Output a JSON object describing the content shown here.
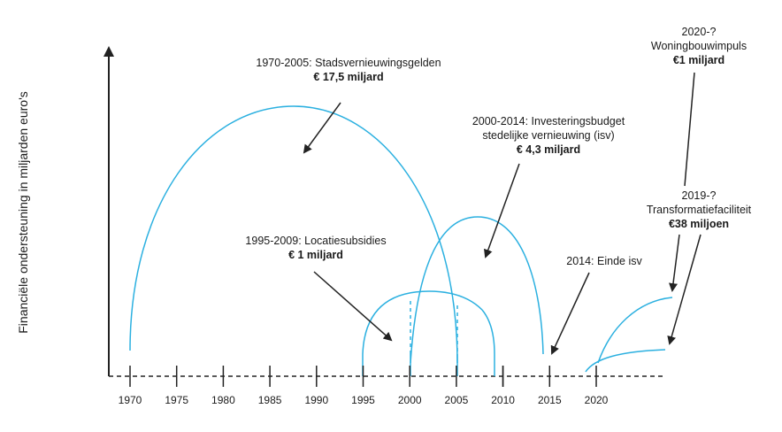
{
  "y_axis_label": "Financiële ondersteuning in miljarden euro's",
  "years": [
    "1970",
    "1975",
    "1980",
    "1985",
    "1990",
    "1995",
    "2000",
    "2005",
    "2010",
    "2015",
    "2020"
  ],
  "colors": {
    "arc": "#2bb0e0",
    "axis": "#222222"
  },
  "annotations": {
    "stadsvernieuwing": {
      "title": "1970-2005: Stadsvernieuwingsgelden",
      "amount": "€ 17,5 miljard"
    },
    "isv": {
      "line1": "2000-2014: Investeringsbudget",
      "line2": "stedelijke vernieuwing (isv)",
      "amount": "€ 4,3 miljard"
    },
    "locatie": {
      "title": "1995-2009: Locatiesubsidies",
      "amount": "€ 1 miljard"
    },
    "einde": {
      "title": "2014: Einde isv"
    },
    "woningbouw": {
      "line1": "2020-?",
      "line2": "Woningbouwimpuls",
      "amount": "€1 miljard"
    },
    "transformatie": {
      "line1": "2019-?",
      "line2": "Transformatiefaciliteit",
      "amount": "€38 miljoen"
    }
  }
}
